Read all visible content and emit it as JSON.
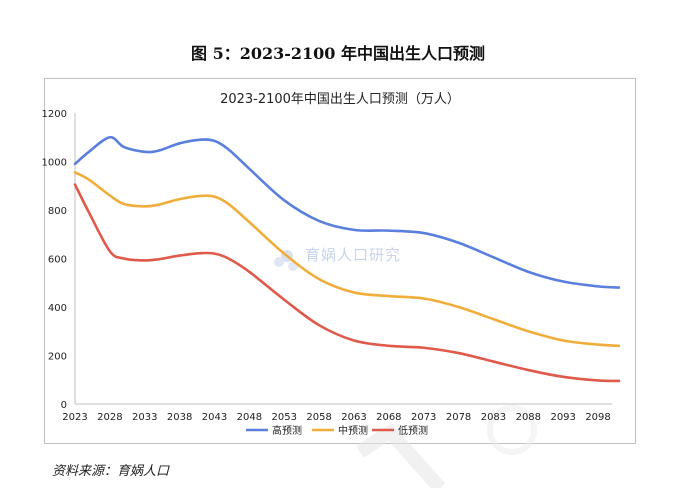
{
  "figure_title": "图 5：2023-2100 年中国出生人口预测",
  "source_text": "资料来源：育娲人口",
  "watermark_text": "育娲人口研究",
  "colors": {
    "high": "#5b7fdc",
    "mid": "#f0ad3c",
    "low": "#df5a4a",
    "axis": "#bfbfbf"
  },
  "chart_data": {
    "type": "line",
    "title": "2023-2100年中国出生人口预测（万人）",
    "xlabel": "",
    "ylabel": "",
    "ylim": [
      0,
      1200
    ],
    "yticks": [
      0,
      200,
      400,
      600,
      800,
      1000,
      1200
    ],
    "xlim": [
      2023,
      2100
    ],
    "xticks": [
      "2023",
      "2028",
      "2033",
      "2038",
      "2043",
      "2048",
      "2053",
      "2058",
      "2063",
      "2068",
      "2073",
      "2078",
      "2083",
      "2088",
      "2093",
      "2098"
    ],
    "grid": false,
    "legend_position": "bottom",
    "x": [
      2023,
      2025,
      2028,
      2030,
      2033,
      2035,
      2038,
      2041,
      2043,
      2045,
      2048,
      2053,
      2058,
      2063,
      2068,
      2073,
      2078,
      2083,
      2088,
      2093,
      2098,
      2101
    ],
    "series": [
      {
        "name": "高预测",
        "color": "#5b7fdc",
        "values": [
          990,
          1040,
          1100,
          1060,
          1040,
          1045,
          1075,
          1090,
          1085,
          1050,
          970,
          840,
          755,
          718,
          715,
          705,
          665,
          605,
          545,
          505,
          485,
          480
        ]
      },
      {
        "name": "中预测",
        "color": "#f0ad3c",
        "values": [
          955,
          925,
          860,
          825,
          815,
          822,
          845,
          858,
          855,
          825,
          750,
          620,
          515,
          460,
          445,
          435,
          400,
          350,
          300,
          262,
          245,
          240
        ]
      },
      {
        "name": "低预测",
        "color": "#df5a4a",
        "values": [
          905,
          790,
          630,
          600,
          592,
          597,
          612,
          622,
          620,
          600,
          545,
          430,
          325,
          262,
          240,
          232,
          210,
          175,
          140,
          112,
          97,
          95
        ]
      }
    ]
  }
}
